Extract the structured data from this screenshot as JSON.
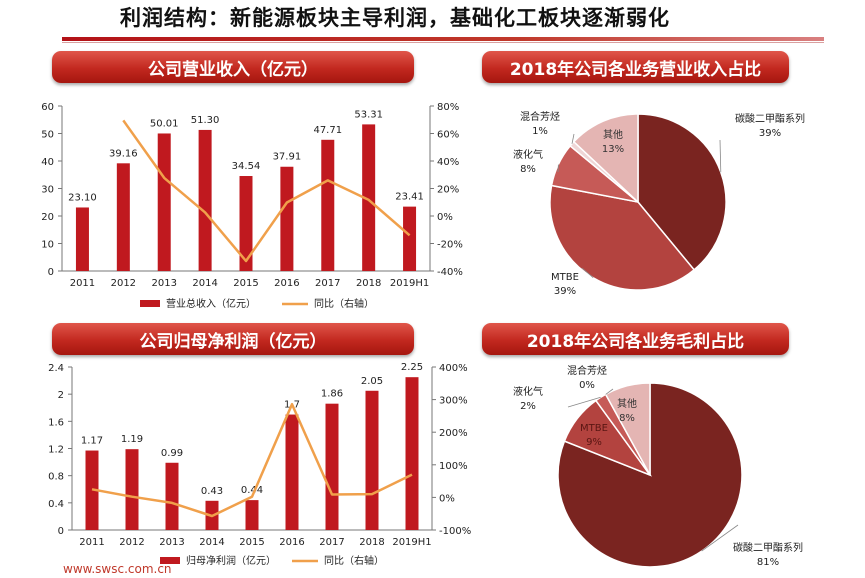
{
  "header": {
    "title": "利润结构：新能源板块主导利润，基础化工板块逐渐弱化"
  },
  "banners": {
    "revenue": "公司营业收入（亿元）",
    "revenue_share": "2018年公司各业务营业收入占比",
    "profit": "公司归母净利润（亿元）",
    "margin_share": "2018年公司各业务毛利占比"
  },
  "footer": {
    "website": "www.swsc.com.cn"
  },
  "colors": {
    "bar": "#c0191f",
    "line": "#f0a04b",
    "banner": "#c2281f",
    "pie_dark": "#7a2420",
    "pie_mid": "#b3433f",
    "pie_light": "#e4b5b3"
  },
  "chart_data": [
    {
      "type": "bar",
      "categories": [
        "2011",
        "2012",
        "2013",
        "2014",
        "2015",
        "2016",
        "2017",
        "2018",
        "2019H1"
      ],
      "series": [
        {
          "name": "营业总收入（亿元）",
          "type": "bar",
          "axis": "left",
          "values": [
            23.1,
            39.16,
            50.01,
            51.3,
            34.54,
            37.91,
            47.71,
            53.31,
            23.41
          ],
          "labels": [
            "23.10",
            "39.16",
            "50.01",
            "51.30",
            "34.54",
            "37.91",
            "47.71",
            "53.31",
            "23.41"
          ]
        },
        {
          "name": "同比（右轴）",
          "type": "line",
          "axis": "right",
          "values": [
            null,
            69.5,
            27.7,
            2.6,
            -32.7,
            9.8,
            25.9,
            11.7,
            -14
          ]
        }
      ],
      "yticks_left": [
        "0",
        "10",
        "20",
        "30",
        "40",
        "50",
        "60"
      ],
      "yticks_right": [
        "-40%",
        "-20%",
        "0%",
        "20%",
        "40%",
        "60%",
        "80%"
      ],
      "ylim_left": [
        0,
        60
      ],
      "ylim_right": [
        -40,
        80
      ]
    },
    {
      "type": "pie",
      "slices": [
        {
          "label": "碳酸二甲酯系列",
          "value": 39,
          "pct": "39%",
          "color": "#7a2420"
        },
        {
          "label": "MTBE",
          "value": 39,
          "pct": "39%",
          "color": "#b3433f"
        },
        {
          "label": "液化气",
          "value": 8,
          "pct": "8%",
          "color": "#c65a57"
        },
        {
          "label": "混合芳烃",
          "value": 1,
          "pct": "1%",
          "color": "#efd6d6"
        },
        {
          "label": "其他",
          "value": 13,
          "pct": "13%",
          "color": "#e4b5b3"
        }
      ]
    },
    {
      "type": "bar",
      "categories": [
        "2011",
        "2012",
        "2013",
        "2014",
        "2015",
        "2016",
        "2017",
        "2018",
        "2019H1"
      ],
      "series": [
        {
          "name": "归母净利润（亿元）",
          "type": "bar",
          "axis": "left",
          "values": [
            1.17,
            1.19,
            0.99,
            0.43,
            0.44,
            1.7,
            1.86,
            2.05,
            2.25
          ],
          "labels": [
            "1.17",
            "1.19",
            "0.99",
            "0.43",
            "0.44",
            "1.7",
            "1.86",
            "2.05",
            "2.25"
          ]
        },
        {
          "name": "同比（右轴）",
          "type": "line",
          "axis": "right",
          "values": [
            25,
            2,
            -17,
            -57,
            2,
            286,
            9,
            10,
            70
          ]
        }
      ],
      "yticks_left": [
        "0",
        "0.4",
        "0.8",
        "1.2",
        "1.6",
        "2",
        "2.4"
      ],
      "yticks_right": [
        "-100%",
        "0%",
        "100%",
        "200%",
        "300%",
        "400%"
      ],
      "ylim_left": [
        0,
        2.4
      ],
      "ylim_right": [
        -100,
        400
      ]
    },
    {
      "type": "pie",
      "slices": [
        {
          "label": "碳酸二甲酯系列",
          "value": 81,
          "pct": "81%",
          "color": "#7a2420"
        },
        {
          "label": "MTBE",
          "value": 9,
          "pct": "9%",
          "color": "#b3433f"
        },
        {
          "label": "液化气",
          "value": 2,
          "pct": "2%",
          "color": "#c65a57"
        },
        {
          "label": "混合芳烃",
          "value": 0,
          "pct": "0%",
          "color": "#efd6d6"
        },
        {
          "label": "其他",
          "value": 8,
          "pct": "8%",
          "color": "#e4b5b3"
        }
      ]
    }
  ]
}
